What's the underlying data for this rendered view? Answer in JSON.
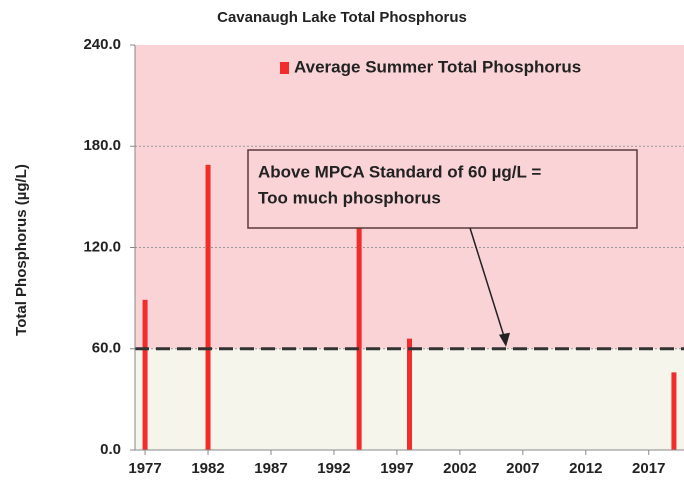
{
  "chart_data": {
    "type": "bar",
    "title": "Cavanaugh Lake Total Phosphorus",
    "y_label": "Total Phosphorus (µg/L)",
    "x": [
      1977,
      1982,
      1994,
      1998,
      2019
    ],
    "series": [
      {
        "name": "Average Summer Total Phosphorus",
        "color": "#f22b2b",
        "values": [
          89,
          169,
          135,
          66,
          46
        ]
      }
    ],
    "xlim": [
      1976.2,
      2019.8
    ],
    "xticks": [
      1977,
      1982,
      1987,
      1992,
      1997,
      2002,
      2007,
      2012,
      2017
    ],
    "ylim": [
      0,
      240
    ],
    "yticks": [
      {
        "value": 0,
        "label": "0.0"
      },
      {
        "value": 60,
        "label": "60.0"
      },
      {
        "value": 120,
        "label": "120.0"
      },
      {
        "value": 180,
        "label": "180.0"
      },
      {
        "value": 240,
        "label": "240.0"
      }
    ],
    "grid": true,
    "legend": "top",
    "standard": 60,
    "annotation": [
      "Above MPCA Standard of 60 µg/L =",
      "Too much phosphorus"
    ]
  }
}
